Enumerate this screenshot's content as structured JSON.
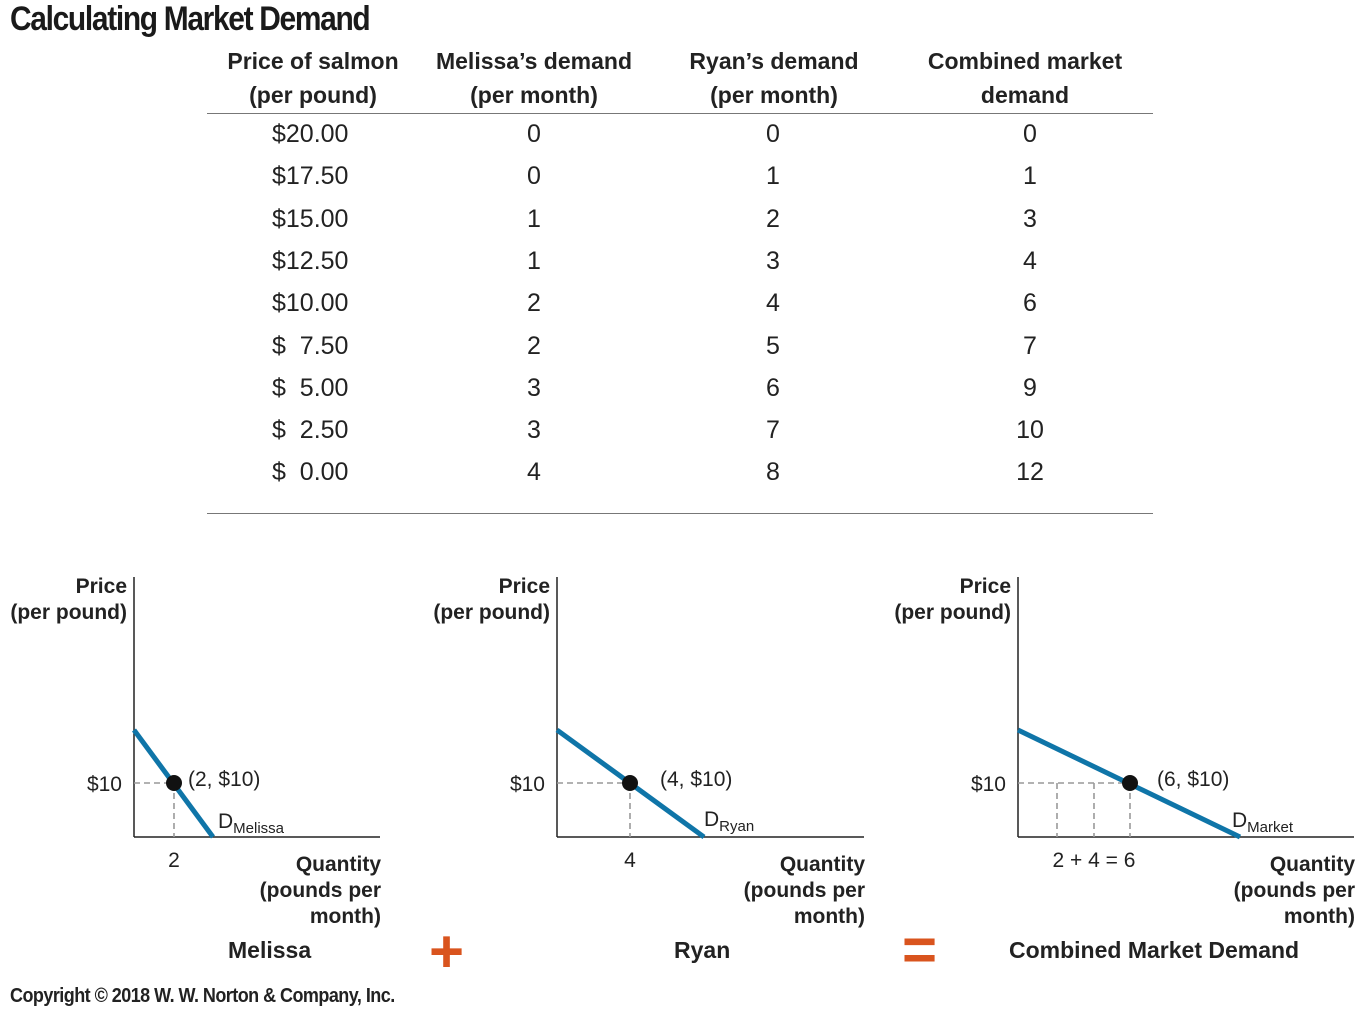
{
  "title": "Calculating Market Demand",
  "copyright": "Copyright © 2018 W. W. Norton & Company, Inc.",
  "colors": {
    "curve": "#0f75a8",
    "operator": "#d9541e",
    "point": "#111111",
    "guide": "#999999"
  },
  "table": {
    "headers": [
      "Price of salmon\n(per pound)",
      "Melissa’s demand\n(per month)",
      "Ryan’s demand\n(per month)",
      "Combined market\ndemand"
    ],
    "rows": [
      [
        "$20.00",
        "0",
        "0",
        "0"
      ],
      [
        "$17.50",
        "0",
        "1",
        "1"
      ],
      [
        "$15.00",
        "1",
        "2",
        "3"
      ],
      [
        "$12.50",
        "1",
        "3",
        "4"
      ],
      [
        "$10.00",
        "2",
        "4",
        "6"
      ],
      [
        "$  7.50",
        "2",
        "5",
        "7"
      ],
      [
        "$  5.00",
        "3",
        "6",
        "9"
      ],
      [
        "$  2.50",
        "3",
        "7",
        "10"
      ],
      [
        "$  0.00",
        "4",
        "8",
        "12"
      ]
    ]
  },
  "graphs": {
    "ylabel": "Price\n(per pound)",
    "xlabel": "Quantity\n(pounds per\nmonth)",
    "price_tick": "$10",
    "melissa": {
      "caption": "Melissa",
      "point_label": "(2, $10)",
      "curve_label": "D",
      "curve_sub": "Melissa",
      "x_tick": "2"
    },
    "ryan": {
      "caption": "Ryan",
      "point_label": "(4, $10)",
      "curve_label": "D",
      "curve_sub": "Ryan",
      "x_tick": "4"
    },
    "market": {
      "caption": "Combined Market Demand",
      "point_label": "(6, $10)",
      "curve_label": "D",
      "curve_sub": "Market",
      "x_tick": "2 + 4 = 6"
    },
    "plus": "+",
    "equals": "="
  },
  "chart_data": {
    "type": "line",
    "title": "Calculating Market Demand",
    "xlabel": "Quantity (pounds per month)",
    "ylabel": "Price (per pound)",
    "x": [
      20.0,
      17.5,
      15.0,
      12.5,
      10.0,
      7.5,
      5.0,
      2.5,
      0.0
    ],
    "series": [
      {
        "name": "Melissa",
        "values": [
          0,
          0,
          1,
          1,
          2,
          2,
          3,
          3,
          4
        ]
      },
      {
        "name": "Ryan",
        "values": [
          0,
          1,
          2,
          3,
          4,
          5,
          6,
          7,
          8
        ]
      },
      {
        "name": "Combined Market Demand",
        "values": [
          0,
          1,
          3,
          4,
          6,
          7,
          9,
          10,
          12
        ]
      }
    ],
    "highlighted_points": [
      {
        "series": "Melissa",
        "quantity": 2,
        "price": 10
      },
      {
        "series": "Ryan",
        "quantity": 4,
        "price": 10
      },
      {
        "series": "Combined Market Demand",
        "quantity": 6,
        "price": 10
      }
    ],
    "grid": false
  }
}
